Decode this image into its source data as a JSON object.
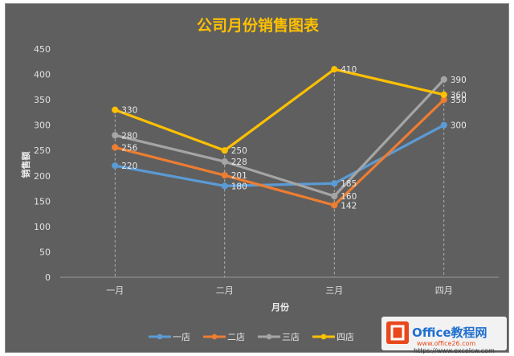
{
  "chart_data": {
    "type": "line",
    "title": "公司月份销售图表",
    "xlabel": "月份",
    "ylabel": "销售额",
    "categories": [
      "一月",
      "二月",
      "三月",
      "四月"
    ],
    "ylim": [
      0,
      450
    ],
    "yticks": [
      0,
      50,
      100,
      150,
      200,
      250,
      300,
      350,
      400,
      450
    ],
    "grid": false,
    "drop_lines": true,
    "legend_position": "bottom",
    "series": [
      {
        "name": "一店",
        "values": [
          220,
          180,
          185,
          300
        ],
        "color": "#5b9bd5"
      },
      {
        "name": "二店",
        "values": [
          256,
          201,
          142,
          350
        ],
        "color": "#ed7d31"
      },
      {
        "name": "三店",
        "values": [
          280,
          228,
          160,
          390
        ],
        "color": "#a5a5a5"
      },
      {
        "name": "四店",
        "values": [
          330,
          250,
          410,
          360
        ],
        "color": "#ffc000"
      }
    ]
  },
  "watermark": {
    "brand": "Office教程网",
    "url": "www.office26.com",
    "url2": "https://www.excelcw.com"
  }
}
